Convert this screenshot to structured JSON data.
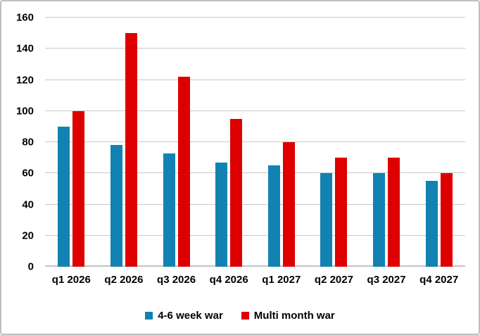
{
  "chart_data": {
    "type": "bar",
    "categories": [
      "q1 2026",
      "q2 2026",
      "q3 2026",
      "q4 2026",
      "q1 2027",
      "q2 2027",
      "q3 2027",
      "q4 2027"
    ],
    "series": [
      {
        "name": "4-6 week war",
        "color": "#1182B2",
        "values": [
          90,
          78,
          73,
          67,
          65,
          60,
          60,
          55
        ]
      },
      {
        "name": "Multi month war",
        "color": "#DE0000",
        "values": [
          100,
          150,
          122,
          95,
          80,
          70,
          70,
          60
        ]
      }
    ],
    "ylim": [
      0,
      160
    ],
    "yticks": [
      0,
      20,
      40,
      60,
      80,
      100,
      120,
      140,
      160
    ],
    "grid": true,
    "legend_position": "bottom"
  },
  "colors": {
    "gridline": "#C9C9C9",
    "axis_line": "#C4C4C4",
    "frame_border": "#BFBFBF",
    "text": "#000000",
    "background": "#FFFFFF"
  }
}
